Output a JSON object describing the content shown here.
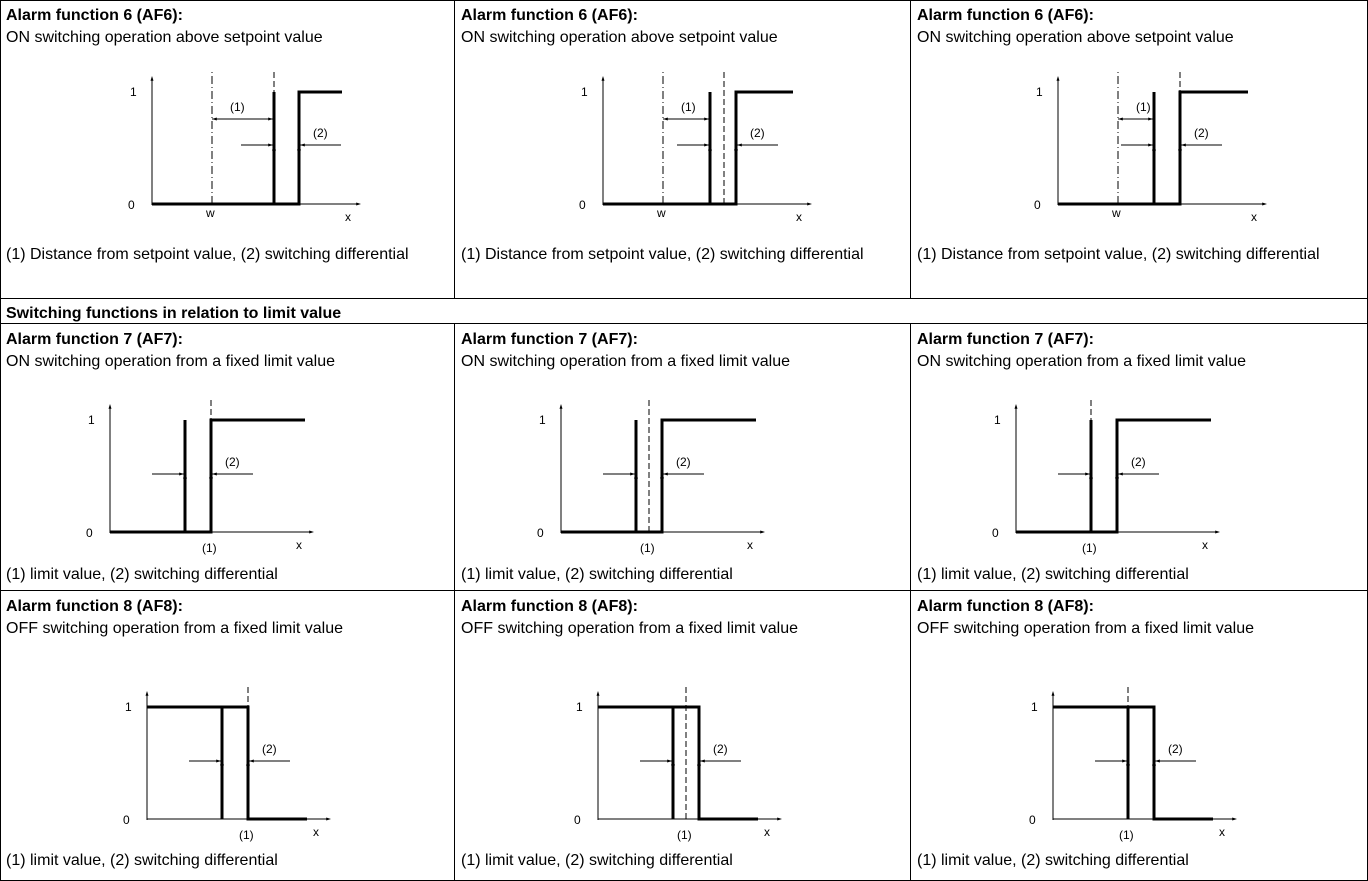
{
  "section_header": "Switching functions in relation to limit value",
  "rows": [
    {
      "title": "Alarm function 6 (AF6):",
      "subtitle": "ON switching operation above setpoint value",
      "caption": "(1) Distance from setpoint value, (2) switching differential",
      "diagram": "af6",
      "labels": {
        "one": "1",
        "zero": "0",
        "x": "x",
        "w": "w",
        "l1": "(1)",
        "l2": "(2)"
      }
    },
    {
      "title": "Alarm function 7 (AF7):",
      "subtitle": "ON switching operation from a fixed limit value",
      "caption": "(1) limit value, (2) switching differential",
      "diagram": "af7",
      "labels": {
        "one": "1",
        "zero": "0",
        "x": "x",
        "l1": "(1)",
        "l2": "(2)"
      }
    },
    {
      "title": "Alarm function 8 (AF8):",
      "subtitle": "OFF switching operation from a fixed limit value",
      "caption": "(1) limit value, (2) switching differential",
      "diagram": "af8",
      "labels": {
        "one": "1",
        "zero": "0",
        "x": "x",
        "l1": "(1)",
        "l2": "(2)"
      }
    }
  ],
  "variants": [
    "left",
    "center",
    "right"
  ]
}
